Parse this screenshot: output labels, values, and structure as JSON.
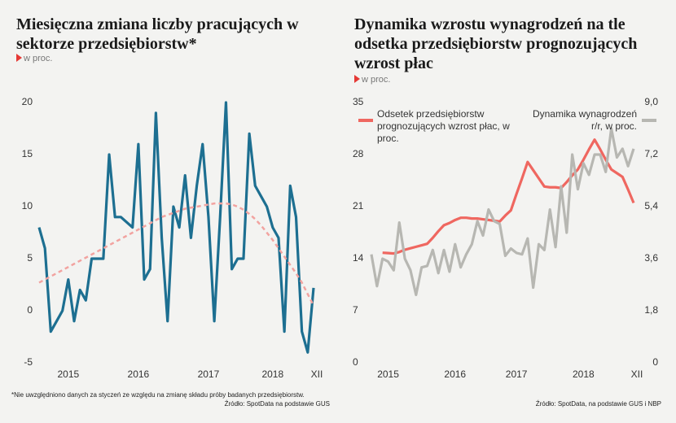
{
  "chart_data": [
    {
      "type": "line",
      "title": "Miesięczna zmiana liczby pracujących w sektorze przedsiębiorstw*",
      "subtitle": "w proc.",
      "categories": [
        null,
        null,
        null,
        null,
        null,
        "2015",
        null,
        null,
        null,
        null,
        null,
        null,
        null,
        null,
        null,
        null,
        null,
        "2016",
        null,
        null,
        null,
        null,
        null,
        null,
        null,
        null,
        null,
        null,
        null,
        "2017",
        null,
        null,
        null,
        null,
        null,
        null,
        null,
        null,
        null,
        null,
        "2018",
        null,
        null,
        null,
        null,
        null,
        null,
        "XII"
      ],
      "series": [
        {
          "color": "#1d6f91",
          "values": [
            8,
            6,
            -2,
            -1,
            0,
            3,
            -1,
            2,
            1,
            5,
            5,
            5,
            15,
            9,
            9,
            8.5,
            8,
            16,
            3,
            4,
            19,
            7,
            -1,
            10,
            8,
            13,
            7,
            12,
            16,
            9,
            -1,
            9,
            20,
            4,
            5,
            5,
            17,
            12,
            11,
            10,
            8,
            7,
            -2,
            12,
            9,
            -2,
            -4,
            2.2
          ]
        },
        {
          "color": "#f2a3a0",
          "dashed": true,
          "values": [
            2.7,
            3.0,
            3.3,
            3.6,
            3.9,
            4.2,
            4.5,
            4.8,
            5.1,
            5.4,
            5.7,
            6.0,
            6.3,
            6.6,
            6.9,
            7.2,
            7.5,
            7.8,
            8.1,
            8.4,
            8.7,
            9.0,
            9.2,
            9.4,
            9.6,
            9.8,
            9.9,
            10.0,
            10.1,
            10.2,
            10.3,
            10.3,
            10.3,
            10.2,
            10.0,
            9.7,
            9.3,
            8.8,
            8.2,
            7.5,
            6.8,
            6.0,
            5.2,
            4.4,
            3.6,
            2.7,
            1.6,
            0.5
          ]
        }
      ],
      "ylim": [
        -5,
        20
      ],
      "yticks": [
        -5,
        0,
        5,
        10,
        15,
        20
      ],
      "footnote": "*Nie uwzględniono danych za styczeń ze względu na zmianę składu próby badanych przedsiębiorstw.",
      "source": "Źródło: SpotData na podstawie GUS"
    },
    {
      "type": "line",
      "title": "Dynamika wzrostu wynagrodzeń na tle odsetka przedsiębiorstw prognozujących wzrost płac",
      "subtitle": "w proc.",
      "categories": [
        null,
        null,
        null,
        "2015",
        null,
        null,
        null,
        null,
        null,
        null,
        null,
        null,
        null,
        null,
        null,
        "2016",
        null,
        null,
        null,
        null,
        null,
        null,
        null,
        null,
        null,
        null,
        "2017",
        null,
        null,
        null,
        null,
        null,
        null,
        null,
        null,
        null,
        null,
        null,
        "2018",
        null,
        null,
        null,
        null,
        null,
        null,
        null,
        null,
        "XII"
      ],
      "series": [
        {
          "name": "Odsetek przedsiębiorstw prognozujących wzrost płac, w proc.",
          "color": "#ef6760",
          "values": [
            null,
            null,
            14.8,
            14.75,
            14.7,
            14.9,
            15.2,
            15.4,
            15.6,
            15.8,
            16,
            16.8,
            17.7,
            18.5,
            18.8,
            19.2,
            19.5,
            19.5,
            19.4,
            19.4,
            19.3,
            19.2,
            19.1,
            19,
            19.8,
            20.5,
            22.7,
            24.8,
            27,
            25.9,
            24.8,
            23.7,
            23.6,
            23.6,
            23.5,
            24.3,
            25.2,
            26,
            27.3,
            28.7,
            30,
            28.7,
            27.3,
            26,
            25.5,
            25,
            23.3,
            21.5
          ]
        },
        {
          "name": "Dynamika wynagrodzeń r/r, w proc.",
          "color": "#b7b7b2",
          "axis": "y2",
          "values": [
            3.75,
            2.65,
            3.6,
            3.5,
            3.2,
            4.85,
            3.6,
            3.2,
            2.35,
            3.3,
            3.35,
            3.9,
            3.1,
            3.9,
            3.15,
            4.1,
            3.3,
            3.75,
            4.1,
            4.9,
            4.4,
            5.3,
            4.9,
            4.8,
            3.7,
            3.95,
            3.8,
            3.75,
            4.3,
            2.6,
            4.1,
            3.9,
            5.3,
            4.0,
            6.1,
            4.5,
            7.2,
            6.0,
            6.9,
            6.5,
            7.2,
            7.2,
            6.6,
            8.1,
            7.1,
            7.4,
            6.8,
            7.4
          ]
        }
      ],
      "ylim": [
        0,
        35
      ],
      "yticks": [
        0,
        7,
        14,
        21,
        28,
        35
      ],
      "y2lim": [
        0,
        9
      ],
      "y2ticks": [
        0,
        {
          "value": 1.8,
          "label": "1,8"
        },
        {
          "value": 3.6,
          "label": "3,6"
        },
        {
          "value": 5.4,
          "label": "5,4"
        },
        {
          "value": 7.2,
          "label": "7,2"
        },
        {
          "value": 9,
          "label": "9,0"
        }
      ],
      "source": "Źródło: SpotData, na podstawie GUS i NBP"
    }
  ]
}
